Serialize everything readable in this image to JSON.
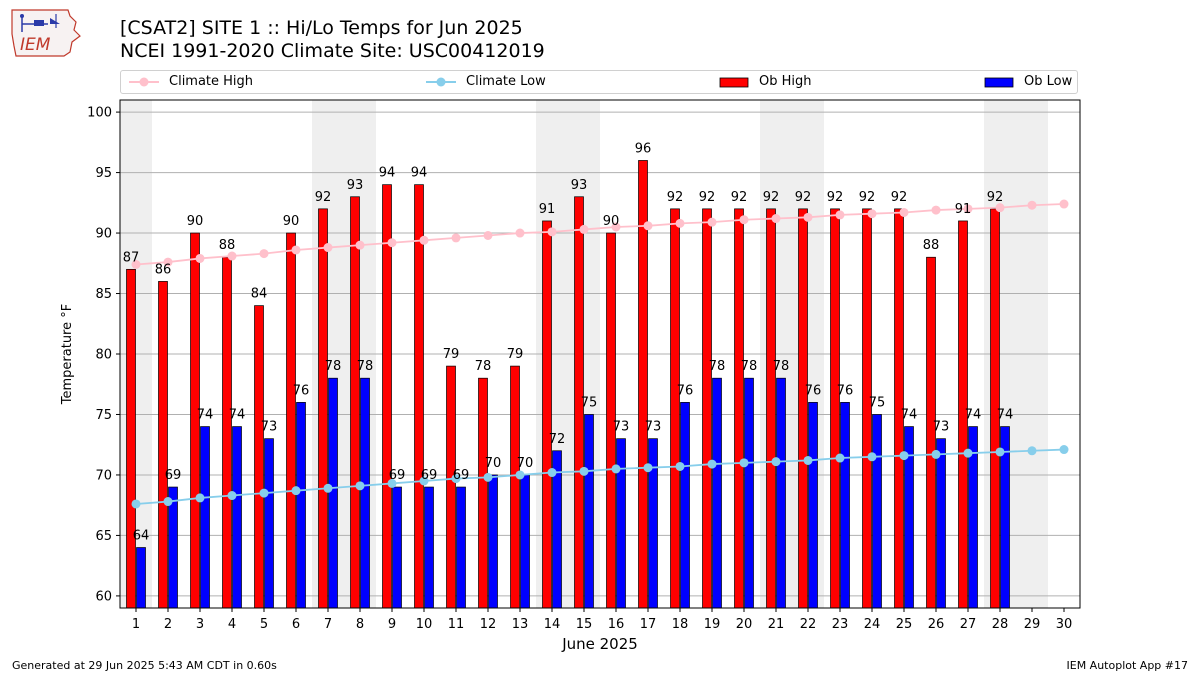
{
  "header": {
    "title_line1": "[CSAT2] SITE 1 :: Hi/Lo Temps for Jun 2025",
    "title_line2": "NCEI 1991-2020 Climate Site: USC00412019"
  },
  "logo": {
    "text": "IEM"
  },
  "footer": {
    "generated": "Generated at 29 Jun 2025 5:43 AM CDT in 0.60s",
    "app": "IEM Autoplot App #17"
  },
  "colors": {
    "ob_high": "#ff0000",
    "ob_low": "#0000ff",
    "climate_high": "#ffc0cb",
    "climate_low": "#87ceeb",
    "weekend_band": "#efefef",
    "grid": "#b0b0b0"
  },
  "legend": [
    {
      "label": "Climate High",
      "kind": "line",
      "color": "#ffc0cb"
    },
    {
      "label": "Climate Low",
      "kind": "line",
      "color": "#87ceeb"
    },
    {
      "label": "Ob High",
      "kind": "bar",
      "color": "#ff0000"
    },
    {
      "label": "Ob Low",
      "kind": "bar",
      "color": "#0000ff"
    }
  ],
  "chart_data": {
    "type": "bar",
    "xlabel": "June 2025",
    "ylabel": "Temperature °F",
    "ylim": [
      59,
      101
    ],
    "yticks": [
      60,
      65,
      70,
      75,
      80,
      85,
      90,
      95,
      100
    ],
    "grid": true,
    "legend_position": "top",
    "days": [
      1,
      2,
      3,
      4,
      5,
      6,
      7,
      8,
      9,
      10,
      11,
      12,
      13,
      14,
      15,
      16,
      17,
      18,
      19,
      20,
      21,
      22,
      23,
      24,
      25,
      26,
      27,
      28,
      29,
      30
    ],
    "weekend_days": [
      1,
      7,
      8,
      14,
      15,
      21,
      22,
      28,
      29
    ],
    "series": [
      {
        "name": "Ob High",
        "type": "bar",
        "values": [
          87,
          86,
          90,
          88,
          84,
          90,
          92,
          93,
          94,
          94,
          79,
          78,
          79,
          91,
          93,
          90,
          96,
          92,
          92,
          92,
          92,
          92,
          92,
          92,
          92,
          88,
          91,
          92,
          null,
          null
        ]
      },
      {
        "name": "Ob Low",
        "type": "bar",
        "values": [
          64,
          69,
          74,
          74,
          73,
          76,
          78,
          78,
          69,
          69,
          69,
          70,
          70,
          72,
          75,
          73,
          73,
          76,
          78,
          78,
          78,
          76,
          76,
          75,
          74,
          73,
          74,
          74,
          null,
          null
        ]
      },
      {
        "name": "Climate High",
        "type": "line",
        "values": [
          87.4,
          87.6,
          87.9,
          88.1,
          88.3,
          88.6,
          88.8,
          89.0,
          89.2,
          89.4,
          89.6,
          89.8,
          90.0,
          90.1,
          90.3,
          90.5,
          90.6,
          90.8,
          90.9,
          91.1,
          91.2,
          91.3,
          91.5,
          91.6,
          91.7,
          91.9,
          92.0,
          92.1,
          92.3,
          92.4
        ]
      },
      {
        "name": "Climate Low",
        "type": "line",
        "values": [
          67.6,
          67.8,
          68.1,
          68.3,
          68.5,
          68.7,
          68.9,
          69.1,
          69.3,
          69.5,
          69.7,
          69.8,
          70.0,
          70.2,
          70.3,
          70.5,
          70.6,
          70.7,
          70.9,
          71.0,
          71.1,
          71.2,
          71.4,
          71.5,
          71.6,
          71.7,
          71.8,
          71.9,
          72.0,
          72.1
        ]
      }
    ]
  }
}
